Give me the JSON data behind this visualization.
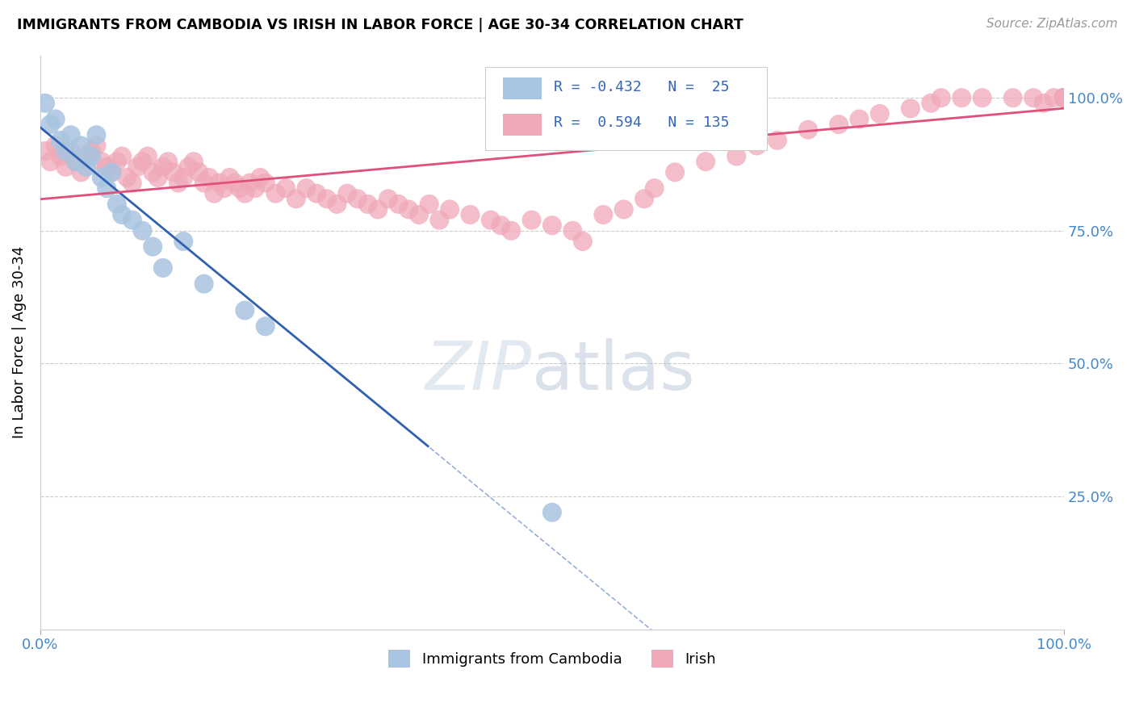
{
  "title": "IMMIGRANTS FROM CAMBODIA VS IRISH IN LABOR FORCE | AGE 30-34 CORRELATION CHART",
  "source": "Source: ZipAtlas.com",
  "ylabel": "In Labor Force | Age 30-34",
  "legend_cambodia": "Immigrants from Cambodia",
  "legend_irish": "Irish",
  "R_cambodia": -0.432,
  "N_cambodia": 25,
  "R_irish": 0.594,
  "N_irish": 135,
  "cambodia_color": "#a8c4e0",
  "irish_color": "#f0a8b8",
  "cambodia_line_color": "#3060b0",
  "irish_line_color": "#e0507a",
  "cam_x": [
    0.5,
    1.0,
    1.5,
    2.0,
    2.5,
    3.0,
    3.5,
    4.0,
    4.5,
    5.0,
    5.5,
    6.0,
    6.5,
    7.0,
    7.5,
    8.0,
    9.0,
    10.0,
    11.0,
    12.0,
    14.0,
    16.0,
    20.0,
    22.0,
    50.0
  ],
  "cam_y": [
    99.0,
    95.0,
    96.0,
    92.0,
    90.0,
    93.0,
    88.0,
    91.0,
    87.0,
    89.0,
    93.0,
    85.0,
    83.0,
    86.0,
    80.0,
    78.0,
    77.0,
    75.0,
    72.0,
    68.0,
    73.0,
    65.0,
    60.0,
    57.0,
    22.0
  ],
  "irish_x_dense": [
    0.5,
    1,
    1.5,
    2,
    2.5,
    3,
    3.5,
    4,
    4.5,
    5,
    5.5,
    6,
    6.5,
    7,
    7.5,
    8,
    8.5,
    9,
    9.5,
    10,
    10.5,
    11,
    11.5,
    12,
    12.5,
    13,
    13.5,
    14,
    14.5,
    15,
    15.5,
    16,
    16.5,
    17,
    17.5,
    18,
    18.5,
    19,
    19.5,
    20,
    20.5,
    21,
    21.5,
    22,
    23,
    24,
    25,
    26,
    27,
    28,
    29,
    30,
    31,
    32,
    33,
    34,
    35,
    36,
    37,
    38,
    39,
    40,
    42,
    44,
    45,
    46,
    48,
    50,
    52,
    53,
    55,
    57,
    59,
    60,
    62,
    65,
    68,
    70,
    72,
    75,
    78,
    80,
    82,
    85,
    87,
    88,
    90,
    92,
    95,
    97,
    98,
    99,
    100,
    100,
    100,
    100,
    100,
    100,
    100,
    100,
    100,
    100,
    100,
    100,
    100,
    100,
    100,
    100,
    100,
    100,
    100,
    100,
    100,
    100,
    100,
    100,
    100,
    100,
    100,
    100,
    100,
    100,
    100,
    100,
    100,
    100,
    100,
    100,
    100,
    100,
    100,
    100,
    100,
    100,
    100,
    100,
    100,
    100,
    100
  ],
  "irish_y_dense": [
    90,
    88,
    91,
    89,
    87,
    90,
    88,
    86,
    89,
    90,
    91,
    88,
    87,
    86,
    88,
    89,
    85,
    84,
    87,
    88,
    89,
    86,
    85,
    87,
    88,
    86,
    84,
    85,
    87,
    88,
    86,
    84,
    85,
    82,
    84,
    83,
    85,
    84,
    83,
    82,
    84,
    83,
    85,
    84,
    82,
    83,
    81,
    83,
    82,
    81,
    80,
    82,
    81,
    80,
    79,
    81,
    80,
    79,
    78,
    80,
    77,
    79,
    78,
    77,
    76,
    75,
    77,
    76,
    75,
    73,
    78,
    79,
    81,
    83,
    86,
    88,
    89,
    91,
    92,
    94,
    95,
    96,
    97,
    98,
    99,
    100,
    100,
    100,
    100,
    100,
    99,
    100,
    100,
    100,
    100,
    100,
    100,
    100,
    100,
    100,
    100,
    100,
    100,
    100,
    100,
    100,
    100,
    100,
    100,
    100,
    100,
    100,
    100,
    100,
    100,
    100,
    100,
    100,
    100,
    100,
    100,
    100,
    100,
    100,
    100,
    100,
    100,
    100,
    100,
    100,
    100,
    100,
    100,
    100,
    100,
    100
  ]
}
